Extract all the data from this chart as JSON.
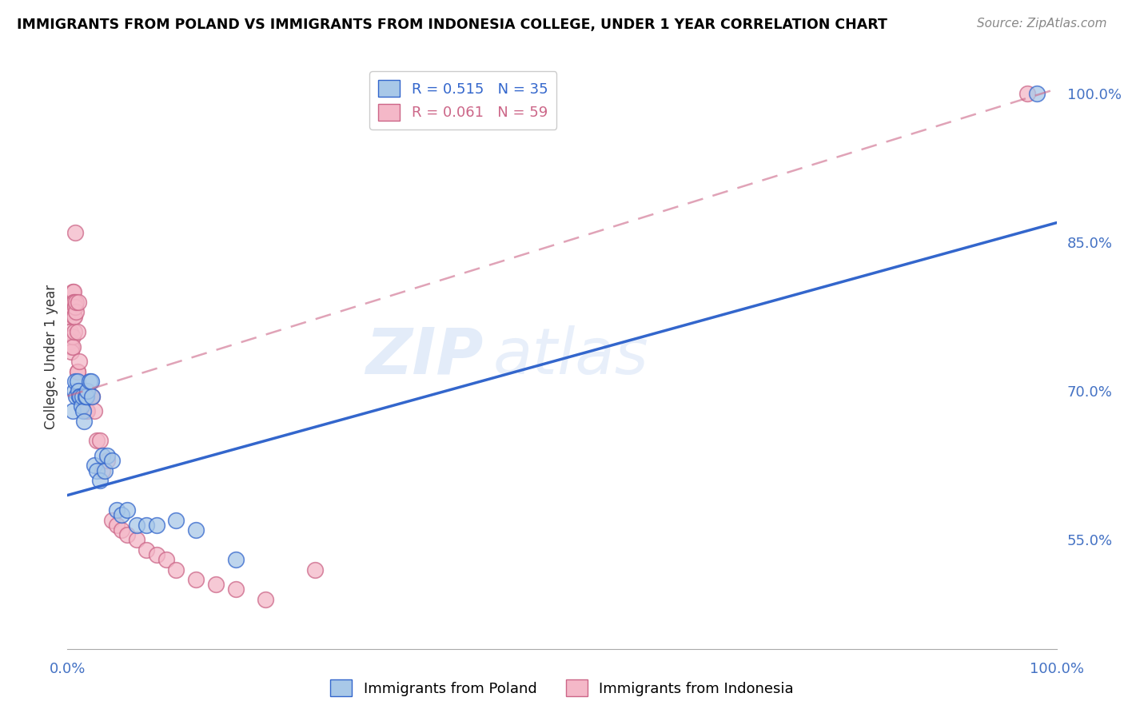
{
  "title": "IMMIGRANTS FROM POLAND VS IMMIGRANTS FROM INDONESIA COLLEGE, UNDER 1 YEAR CORRELATION CHART",
  "source": "Source: ZipAtlas.com",
  "ylabel": "College, Under 1 year",
  "legend_poland": "Immigrants from Poland",
  "legend_indonesia": "Immigrants from Indonesia",
  "poland_R": 0.515,
  "poland_N": 35,
  "indonesia_R": 0.061,
  "indonesia_N": 59,
  "blue_color": "#a8c8e8",
  "blue_line_color": "#3366cc",
  "pink_color": "#f4b8c8",
  "pink_line_color": "#cc6688",
  "axis_color": "#4472c4",
  "grid_color": "#cccccc",
  "watermark_zip": "ZIP",
  "watermark_atlas": "atlas",
  "xlim": [
    0.0,
    1.0
  ],
  "ylim": [
    0.44,
    1.03
  ],
  "yticks": [
    0.55,
    0.7,
    0.85,
    1.0
  ],
  "ytick_labels": [
    "55.0%",
    "70.0%",
    "85.0%",
    "100.0%"
  ],
  "poland_x": [
    0.005,
    0.007,
    0.008,
    0.009,
    0.01,
    0.011,
    0.012,
    0.013,
    0.014,
    0.015,
    0.016,
    0.017,
    0.018,
    0.019,
    0.02,
    0.022,
    0.024,
    0.025,
    0.027,
    0.03,
    0.033,
    0.035,
    0.038,
    0.04,
    0.045,
    0.05,
    0.055,
    0.06,
    0.07,
    0.08,
    0.09,
    0.11,
    0.13,
    0.17,
    0.98
  ],
  "poland_y": [
    0.68,
    0.7,
    0.71,
    0.695,
    0.71,
    0.7,
    0.695,
    0.695,
    0.685,
    0.695,
    0.68,
    0.67,
    0.695,
    0.695,
    0.7,
    0.71,
    0.71,
    0.695,
    0.625,
    0.62,
    0.61,
    0.635,
    0.62,
    0.635,
    0.63,
    0.58,
    0.575,
    0.58,
    0.565,
    0.565,
    0.565,
    0.57,
    0.56,
    0.53,
    1.0
  ],
  "indonesia_x": [
    0.001,
    0.002,
    0.003,
    0.003,
    0.004,
    0.004,
    0.005,
    0.005,
    0.005,
    0.005,
    0.006,
    0.006,
    0.006,
    0.007,
    0.007,
    0.007,
    0.008,
    0.008,
    0.009,
    0.009,
    0.01,
    0.01,
    0.01,
    0.011,
    0.011,
    0.012,
    0.012,
    0.013,
    0.013,
    0.014,
    0.015,
    0.016,
    0.017,
    0.018,
    0.019,
    0.02,
    0.022,
    0.024,
    0.025,
    0.027,
    0.03,
    0.033,
    0.035,
    0.04,
    0.045,
    0.05,
    0.055,
    0.06,
    0.07,
    0.08,
    0.09,
    0.1,
    0.11,
    0.13,
    0.15,
    0.17,
    0.2,
    0.25,
    0.97
  ],
  "indonesia_y": [
    0.78,
    0.775,
    0.76,
    0.75,
    0.745,
    0.74,
    0.8,
    0.78,
    0.755,
    0.745,
    0.8,
    0.79,
    0.775,
    0.76,
    0.79,
    0.775,
    0.86,
    0.785,
    0.78,
    0.79,
    0.72,
    0.76,
    0.72,
    0.7,
    0.79,
    0.7,
    0.73,
    0.7,
    0.695,
    0.7,
    0.7,
    0.7,
    0.695,
    0.7,
    0.68,
    0.68,
    0.695,
    0.695,
    0.695,
    0.68,
    0.65,
    0.65,
    0.62,
    0.63,
    0.57,
    0.565,
    0.56,
    0.555,
    0.55,
    0.54,
    0.535,
    0.53,
    0.52,
    0.51,
    0.505,
    0.5,
    0.49,
    0.52,
    1.0
  ],
  "poland_line_x": [
    0.0,
    1.0
  ],
  "poland_line_y": [
    0.595,
    0.87
  ],
  "indonesia_line_x": [
    0.0,
    1.0
  ],
  "indonesia_line_y": [
    0.695,
    1.005
  ]
}
